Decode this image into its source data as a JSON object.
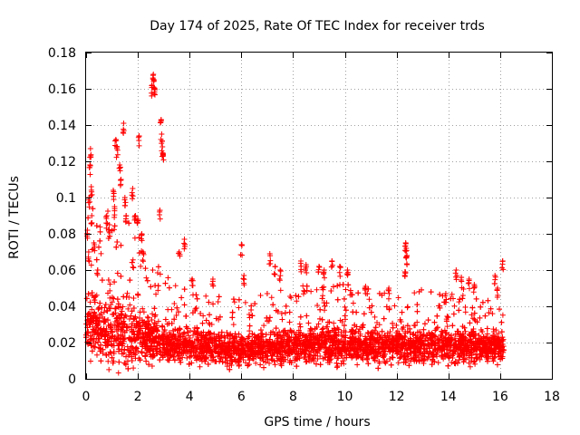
{
  "chart_data": {
    "type": "scatter",
    "title": "Day 174 of 2025, Rate Of TEC Index for receiver trds",
    "xlabel": "GPS time / hours",
    "ylabel": "ROTI / TECUs",
    "xlim": [
      0,
      18
    ],
    "ylim": [
      0,
      0.18
    ],
    "x_ticks": [
      0,
      2,
      4,
      6,
      8,
      10,
      12,
      14,
      16,
      18
    ],
    "x_tick_labels": [
      "0",
      "2",
      "4",
      "6",
      "8",
      "10",
      "12",
      "14",
      "16",
      "18"
    ],
    "y_ticks": [
      0,
      0.02,
      0.04,
      0.06,
      0.08,
      0.1,
      0.12,
      0.14,
      0.16,
      0.18
    ],
    "y_tick_labels": [
      "0",
      "0.02",
      "0.04",
      "0.06",
      "0.08",
      "0.1",
      "0.12",
      "0.14",
      "0.16",
      "0.18"
    ],
    "grid": true,
    "marker": "+",
    "series": [
      {
        "name": "ROTI",
        "color": "#ff0000",
        "x_range": [
          0,
          16.15
        ],
        "profile": {
          "x": [
            0,
            0.2,
            0.5,
            1,
            1.5,
            2,
            2.5,
            3,
            4,
            5,
            6,
            7,
            8,
            9,
            10,
            11,
            12,
            13,
            14,
            15,
            16,
            16.15
          ],
          "baseline": [
            0.03,
            0.032,
            0.028,
            0.026,
            0.025,
            0.023,
            0.022,
            0.02,
            0.018,
            0.017,
            0.016,
            0.017,
            0.018,
            0.019,
            0.019,
            0.018,
            0.018,
            0.018,
            0.018,
            0.018,
            0.017,
            0.017
          ],
          "spread": [
            0.02,
            0.022,
            0.02,
            0.022,
            0.02,
            0.018,
            0.015,
            0.012,
            0.01,
            0.009,
            0.009,
            0.01,
            0.01,
            0.011,
            0.011,
            0.01,
            0.01,
            0.01,
            0.01,
            0.01,
            0.009,
            0.009
          ]
        },
        "points": [
          [
            0.05,
            0.082
          ],
          [
            0.1,
            0.07
          ],
          [
            0.12,
            0.1
          ],
          [
            0.15,
            0.118
          ],
          [
            0.17,
            0.127
          ],
          [
            0.2,
            0.106
          ],
          [
            0.22,
            0.09
          ],
          [
            0.3,
            0.075
          ],
          [
            0.8,
            0.09
          ],
          [
            0.9,
            0.085
          ],
          [
            1.05,
            0.104
          ],
          [
            1.1,
            0.095
          ],
          [
            1.15,
            0.132
          ],
          [
            1.2,
            0.128
          ],
          [
            1.3,
            0.118
          ],
          [
            1.35,
            0.11
          ],
          [
            1.45,
            0.141
          ],
          [
            1.5,
            0.1
          ],
          [
            1.55,
            0.09
          ],
          [
            1.8,
            0.105
          ],
          [
            1.9,
            0.09
          ],
          [
            2.0,
            0.088
          ],
          [
            2.05,
            0.134
          ],
          [
            2.15,
            0.08
          ],
          [
            2.2,
            0.07
          ],
          [
            2.55,
            0.162
          ],
          [
            2.6,
            0.168
          ],
          [
            2.62,
            0.165
          ],
          [
            2.65,
            0.16
          ],
          [
            2.9,
            0.143
          ],
          [
            2.92,
            0.135
          ],
          [
            2.95,
            0.128
          ],
          [
            2.97,
            0.124
          ],
          [
            2.85,
            0.093
          ],
          [
            3.6,
            0.07
          ],
          [
            3.8,
            0.077
          ],
          [
            4.1,
            0.055
          ],
          [
            4.9,
            0.055
          ],
          [
            6.0,
            0.074
          ],
          [
            6.1,
            0.057
          ],
          [
            7.1,
            0.069
          ],
          [
            7.3,
            0.062
          ],
          [
            7.5,
            0.06
          ],
          [
            8.3,
            0.065
          ],
          [
            8.5,
            0.063
          ],
          [
            9.0,
            0.062
          ],
          [
            9.2,
            0.06
          ],
          [
            9.5,
            0.065
          ],
          [
            9.8,
            0.062
          ],
          [
            10.1,
            0.06
          ],
          [
            10.8,
            0.051
          ],
          [
            11.7,
            0.05
          ],
          [
            12.35,
            0.075
          ],
          [
            12.37,
            0.072
          ],
          [
            12.4,
            0.068
          ],
          [
            12.32,
            0.059
          ],
          [
            13.9,
            0.047
          ],
          [
            14.3,
            0.06
          ],
          [
            14.5,
            0.056
          ],
          [
            14.8,
            0.055
          ],
          [
            15.0,
            0.052
          ],
          [
            15.8,
            0.057
          ],
          [
            15.9,
            0.05
          ],
          [
            16.1,
            0.065
          ]
        ]
      }
    ]
  }
}
